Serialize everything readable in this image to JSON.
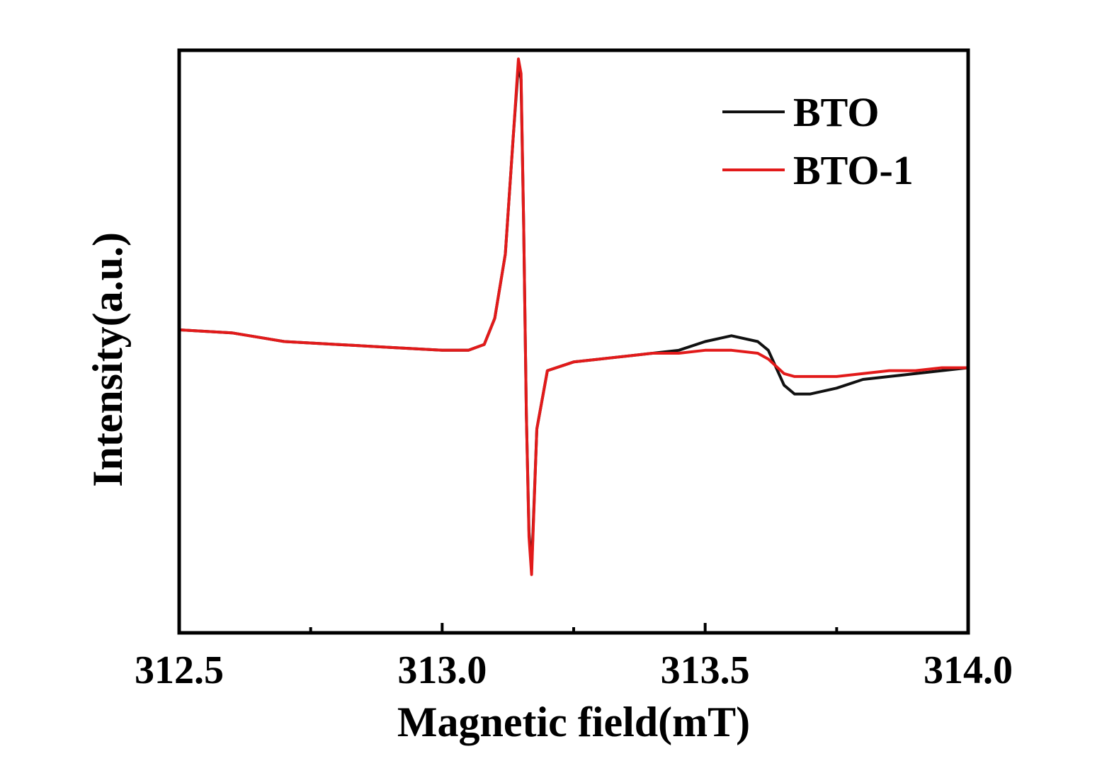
{
  "chart_data": {
    "type": "line",
    "xlabel": "Magnetic field(mT)",
    "ylabel": "Intensity(a.u.)",
    "xlim": [
      312.5,
      314.0
    ],
    "ylim": [
      -1.0,
      1.0
    ],
    "x_ticks": [
      312.5,
      312.75,
      313.0,
      313.25,
      313.5,
      313.75,
      314.0
    ],
    "x_tick_labels": [
      "312.5",
      "",
      "313.0",
      "",
      "313.5",
      "",
      "314.0"
    ],
    "y_ticks_shown": false,
    "grid": false,
    "legend_position": "top-right",
    "series": [
      {
        "name": "BTO",
        "color": "#111111",
        "x": [
          312.5,
          312.6,
          312.7,
          312.8,
          312.9,
          313.0,
          313.05,
          313.08,
          313.1,
          313.12,
          313.135,
          313.145,
          313.15,
          313.155,
          313.16,
          313.165,
          313.17,
          313.18,
          313.2,
          313.25,
          313.3,
          313.4,
          313.45,
          313.5,
          313.55,
          313.6,
          313.62,
          313.65,
          313.67,
          313.7,
          313.75,
          313.8,
          313.85,
          313.9,
          313.95,
          314.0
        ],
        "y": [
          0.04,
          0.03,
          0.0,
          -0.01,
          -0.02,
          -0.03,
          -0.03,
          -0.01,
          0.08,
          0.3,
          0.7,
          0.95,
          0.9,
          0.4,
          -0.25,
          -0.65,
          -0.78,
          -0.3,
          -0.1,
          -0.07,
          -0.06,
          -0.04,
          -0.03,
          0.0,
          0.02,
          0.0,
          -0.03,
          -0.15,
          -0.18,
          -0.18,
          -0.16,
          -0.13,
          -0.12,
          -0.11,
          -0.1,
          -0.09
        ]
      },
      {
        "name": "BTO-1",
        "color": "#e21a1a",
        "x": [
          312.5,
          312.6,
          312.7,
          312.8,
          312.9,
          313.0,
          313.05,
          313.08,
          313.1,
          313.12,
          313.135,
          313.145,
          313.15,
          313.155,
          313.16,
          313.165,
          313.17,
          313.18,
          313.2,
          313.25,
          313.3,
          313.4,
          313.45,
          313.5,
          313.55,
          313.6,
          313.62,
          313.65,
          313.67,
          313.7,
          313.75,
          313.8,
          313.85,
          313.9,
          313.95,
          314.0
        ],
        "y": [
          0.04,
          0.03,
          0.0,
          -0.01,
          -0.02,
          -0.03,
          -0.03,
          -0.01,
          0.08,
          0.3,
          0.7,
          0.97,
          0.92,
          0.4,
          -0.25,
          -0.67,
          -0.8,
          -0.3,
          -0.1,
          -0.07,
          -0.06,
          -0.04,
          -0.04,
          -0.03,
          -0.03,
          -0.04,
          -0.06,
          -0.11,
          -0.12,
          -0.12,
          -0.12,
          -0.11,
          -0.1,
          -0.1,
          -0.09,
          -0.09
        ]
      }
    ]
  }
}
